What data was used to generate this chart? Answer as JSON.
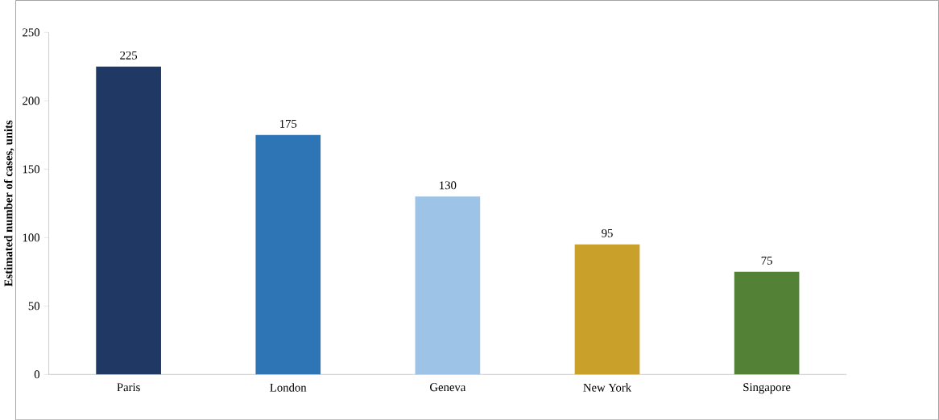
{
  "chart_data": {
    "type": "bar",
    "ylabel": "Estimated number of cases, units",
    "categories": [
      "Paris",
      "London",
      "Geneva",
      "New York",
      "Singapore"
    ],
    "values": [
      225,
      175,
      130,
      95,
      75
    ],
    "colors": [
      "#1f3864",
      "#2e75b6",
      "#9dc3e6",
      "#c9a02a",
      "#538135"
    ],
    "ylim": [
      0,
      250
    ],
    "yticks": [
      0,
      50,
      100,
      150,
      200,
      250
    ],
    "data_labels": true,
    "grid": false
  }
}
